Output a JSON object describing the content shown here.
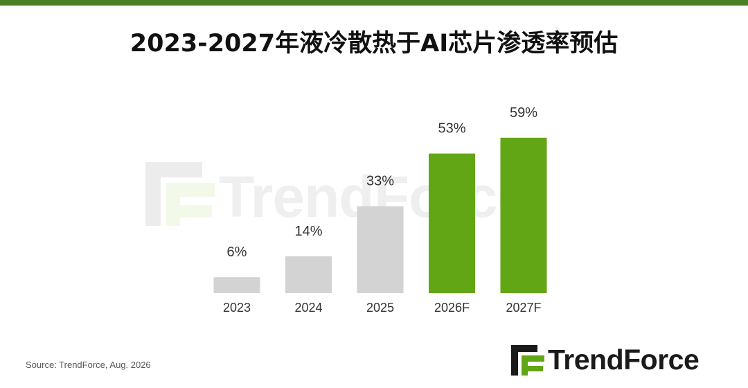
{
  "header": {
    "title": "2023-2027年液冷散热于AI芯片渗透率预估"
  },
  "chart_data": {
    "type": "bar",
    "title": "2023-2027年液冷散热于AI芯片渗透率预估",
    "categories": [
      "2023",
      "2024",
      "2025",
      "2026F",
      "2027F"
    ],
    "values": [
      6,
      14,
      33,
      53,
      59
    ],
    "labels": [
      "6%",
      "14%",
      "33%",
      "53%",
      "59%"
    ],
    "unit": "%",
    "ylim": [
      0,
      65
    ],
    "grid": false,
    "legend": "none",
    "colors": {
      "actual": "#d3d3d3",
      "forecast": "#62a615"
    },
    "forecast_categories": [
      "2026F",
      "2027F"
    ]
  },
  "watermark": {
    "text": "TrendForce"
  },
  "footer": {
    "source": "Source: TrendForce, Aug. 2026",
    "logo_text": "TrendForce"
  },
  "colors": {
    "top_bar": "#4d7f24",
    "logo_green": "#62a615"
  }
}
